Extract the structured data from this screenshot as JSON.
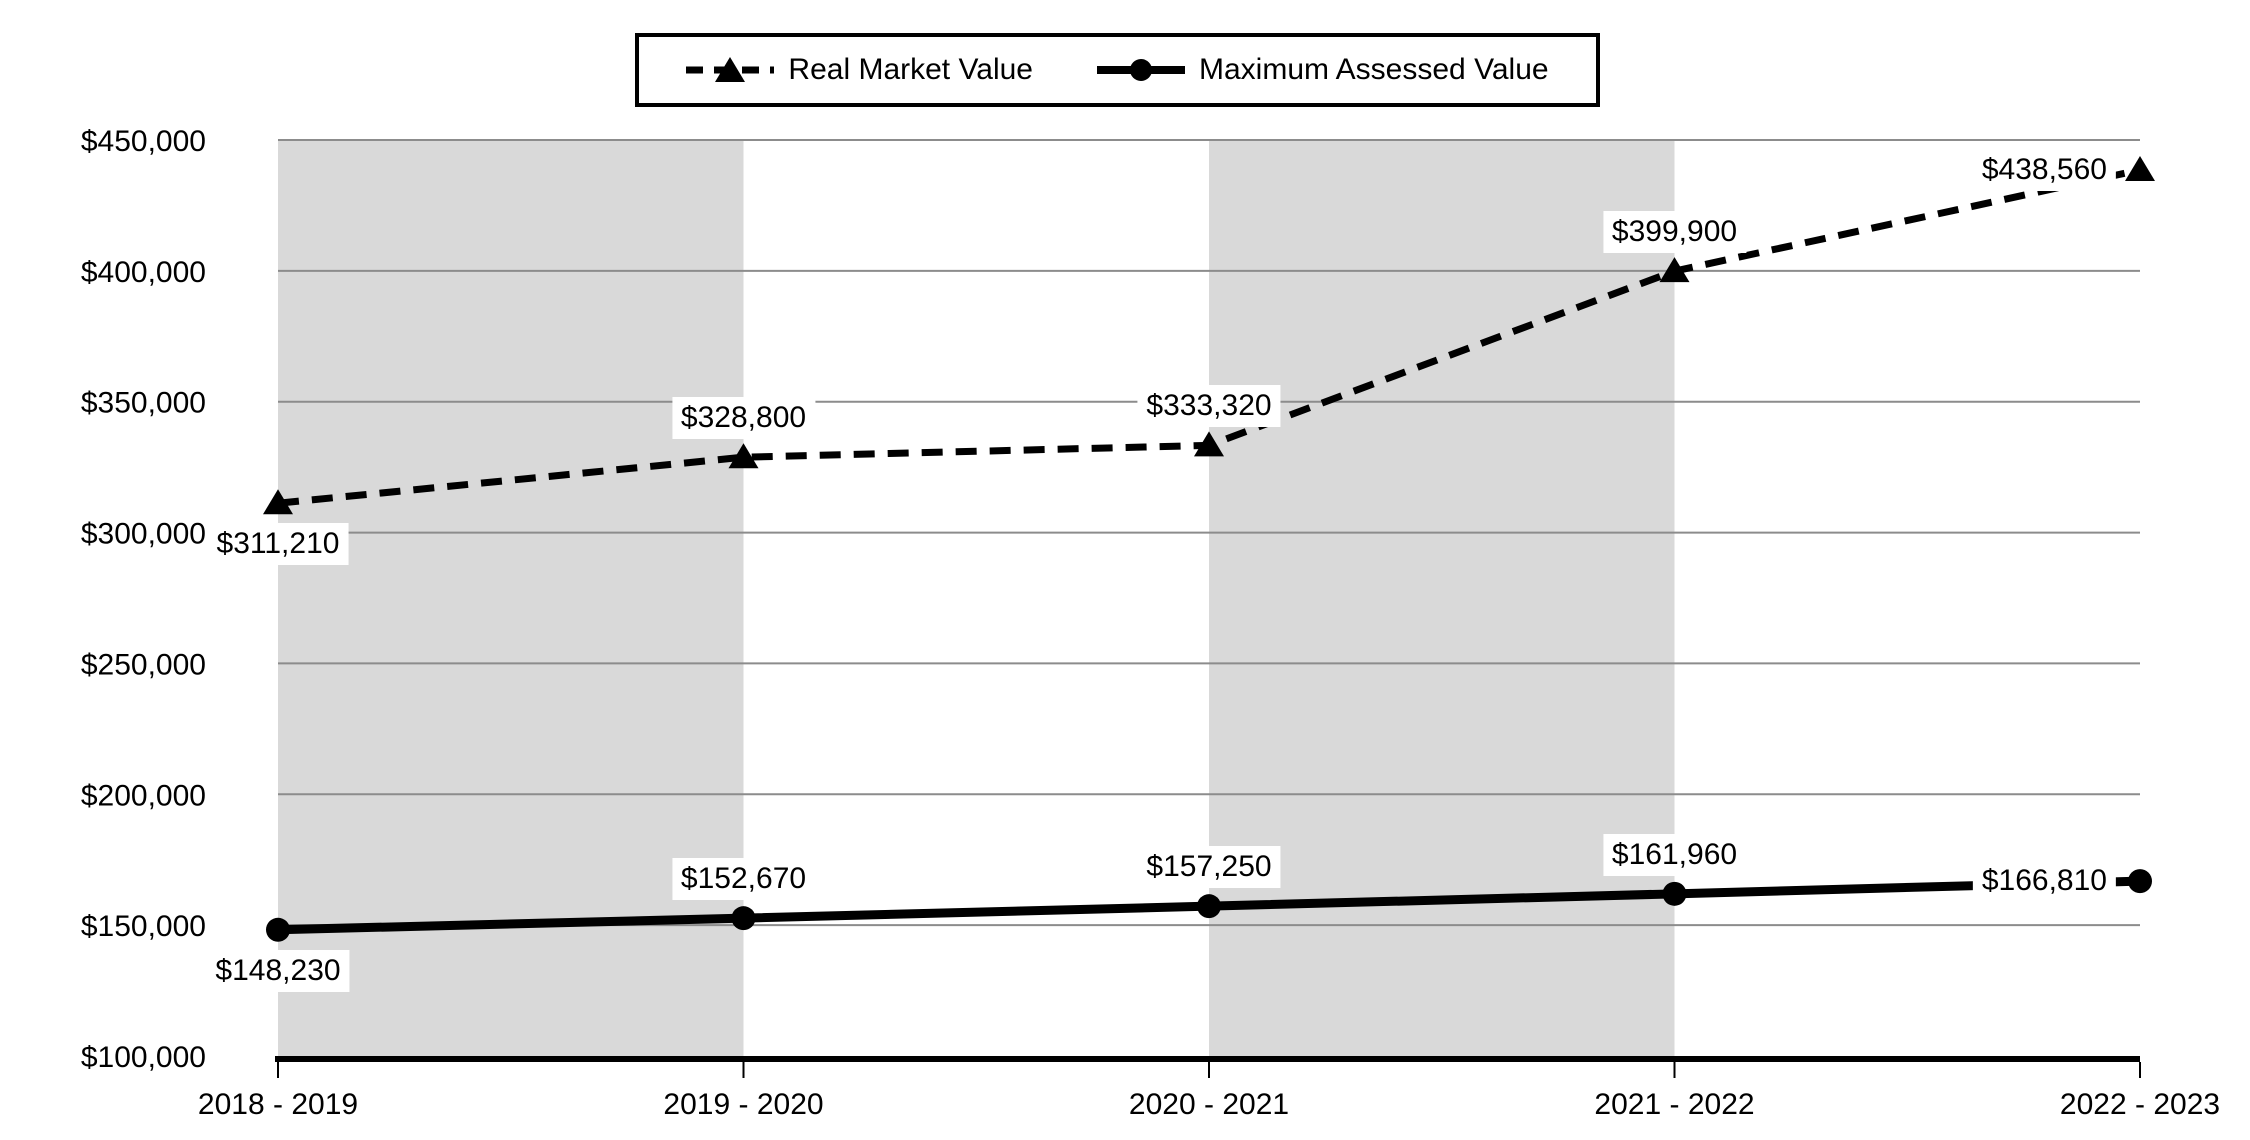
{
  "colors": {
    "background": "#ffffff",
    "band": "#d9d9d9",
    "gridline": "#8c8c8c",
    "axis": "#000000",
    "text": "#000000",
    "label_background": "#ffffff"
  },
  "chart_data": {
    "type": "line",
    "title": "",
    "xlabel": "",
    "ylabel": "",
    "grid": true,
    "legend_position": "top-center",
    "categories": [
      "2018 - 2019",
      "2019 - 2020",
      "2020 - 2021",
      "2021 - 2022",
      "2022 - 2023"
    ],
    "series": [
      {
        "name": "Real Market Value",
        "line_style": "dashed",
        "marker": "triangle",
        "color": "#000000",
        "values": [
          311210,
          328800,
          333320,
          399900,
          438560
        ],
        "data_labels": [
          "$311,210",
          "$328,800",
          "$333,320",
          "$399,900",
          "$438,560"
        ],
        "label_placements": [
          "below",
          "above",
          "above",
          "above",
          "left"
        ]
      },
      {
        "name": "Maximum Assessed Value",
        "line_style": "solid",
        "marker": "circle",
        "color": "#000000",
        "values": [
          148230,
          152670,
          157250,
          161960,
          166810
        ],
        "data_labels": [
          "$148,230",
          "$152,670",
          "$157,250",
          "$161,960",
          "$166,810"
        ],
        "label_placements": [
          "below",
          "above",
          "above",
          "above",
          "left"
        ]
      }
    ],
    "ylim": [
      100000,
      450000
    ],
    "ytick_step": 50000,
    "ytick_labels": [
      "$100,000",
      "$150,000",
      "$200,000",
      "$250,000",
      "$300,000",
      "$350,000",
      "$400,000",
      "$450,000"
    ],
    "plot_bands": {
      "color": "#d9d9d9",
      "pattern": "alternate",
      "shaded_intervals": [
        [
          0,
          1
        ],
        [
          2,
          3
        ]
      ]
    }
  }
}
